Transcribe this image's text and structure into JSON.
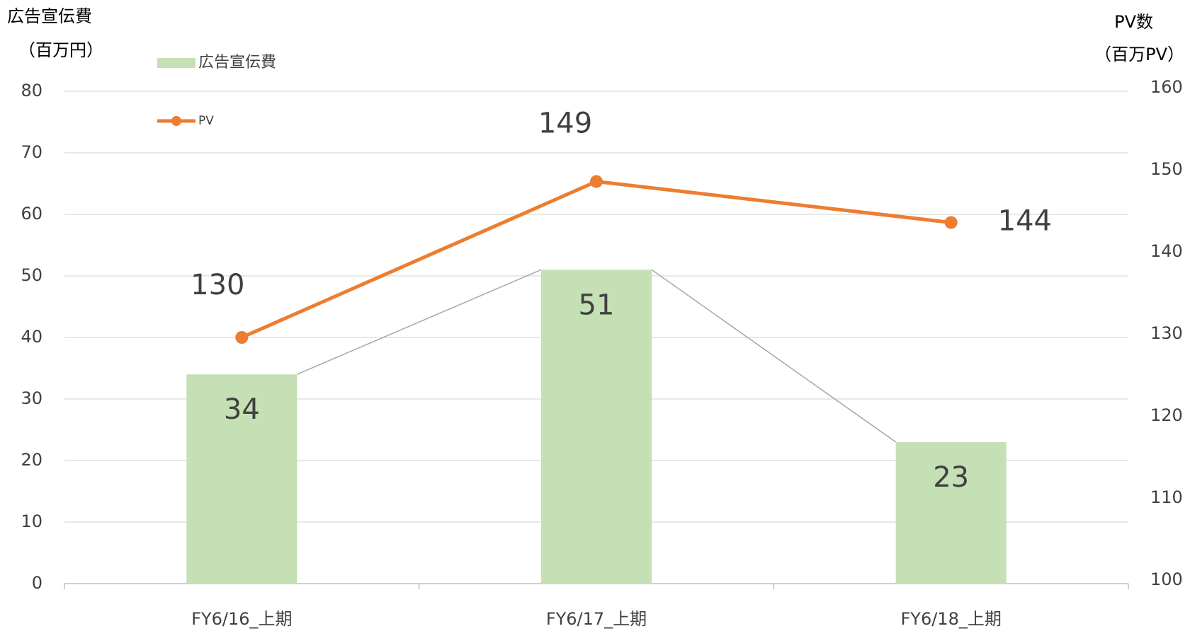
{
  "chart_data": {
    "type": "combo",
    "y_label": "広告宣伝費",
    "y_unit": "（百万円）",
    "y2_label": "PV数",
    "y2_unit": "（百万PV）",
    "categories": [
      "FY6/16_上期",
      "FY6/17_上期",
      "FY6/18_上期"
    ],
    "series": [
      {
        "name": "広告宣伝費",
        "type": "bar",
        "color": "#c5e0b4",
        "values": [
          34,
          51,
          23
        ]
      },
      {
        "name": "PV",
        "type": "line",
        "color": "#ed7d31",
        "axis": "y2",
        "values": [
          130,
          149,
          144
        ]
      }
    ],
    "ylim": [
      0,
      80
    ],
    "yticks": [
      0,
      10,
      20,
      30,
      40,
      50,
      60,
      70,
      80
    ],
    "y2lim": [
      100,
      160
    ],
    "y2ticks": [
      100,
      110,
      120,
      130,
      140,
      150,
      160
    ],
    "grid": true,
    "legend": "top-left"
  }
}
